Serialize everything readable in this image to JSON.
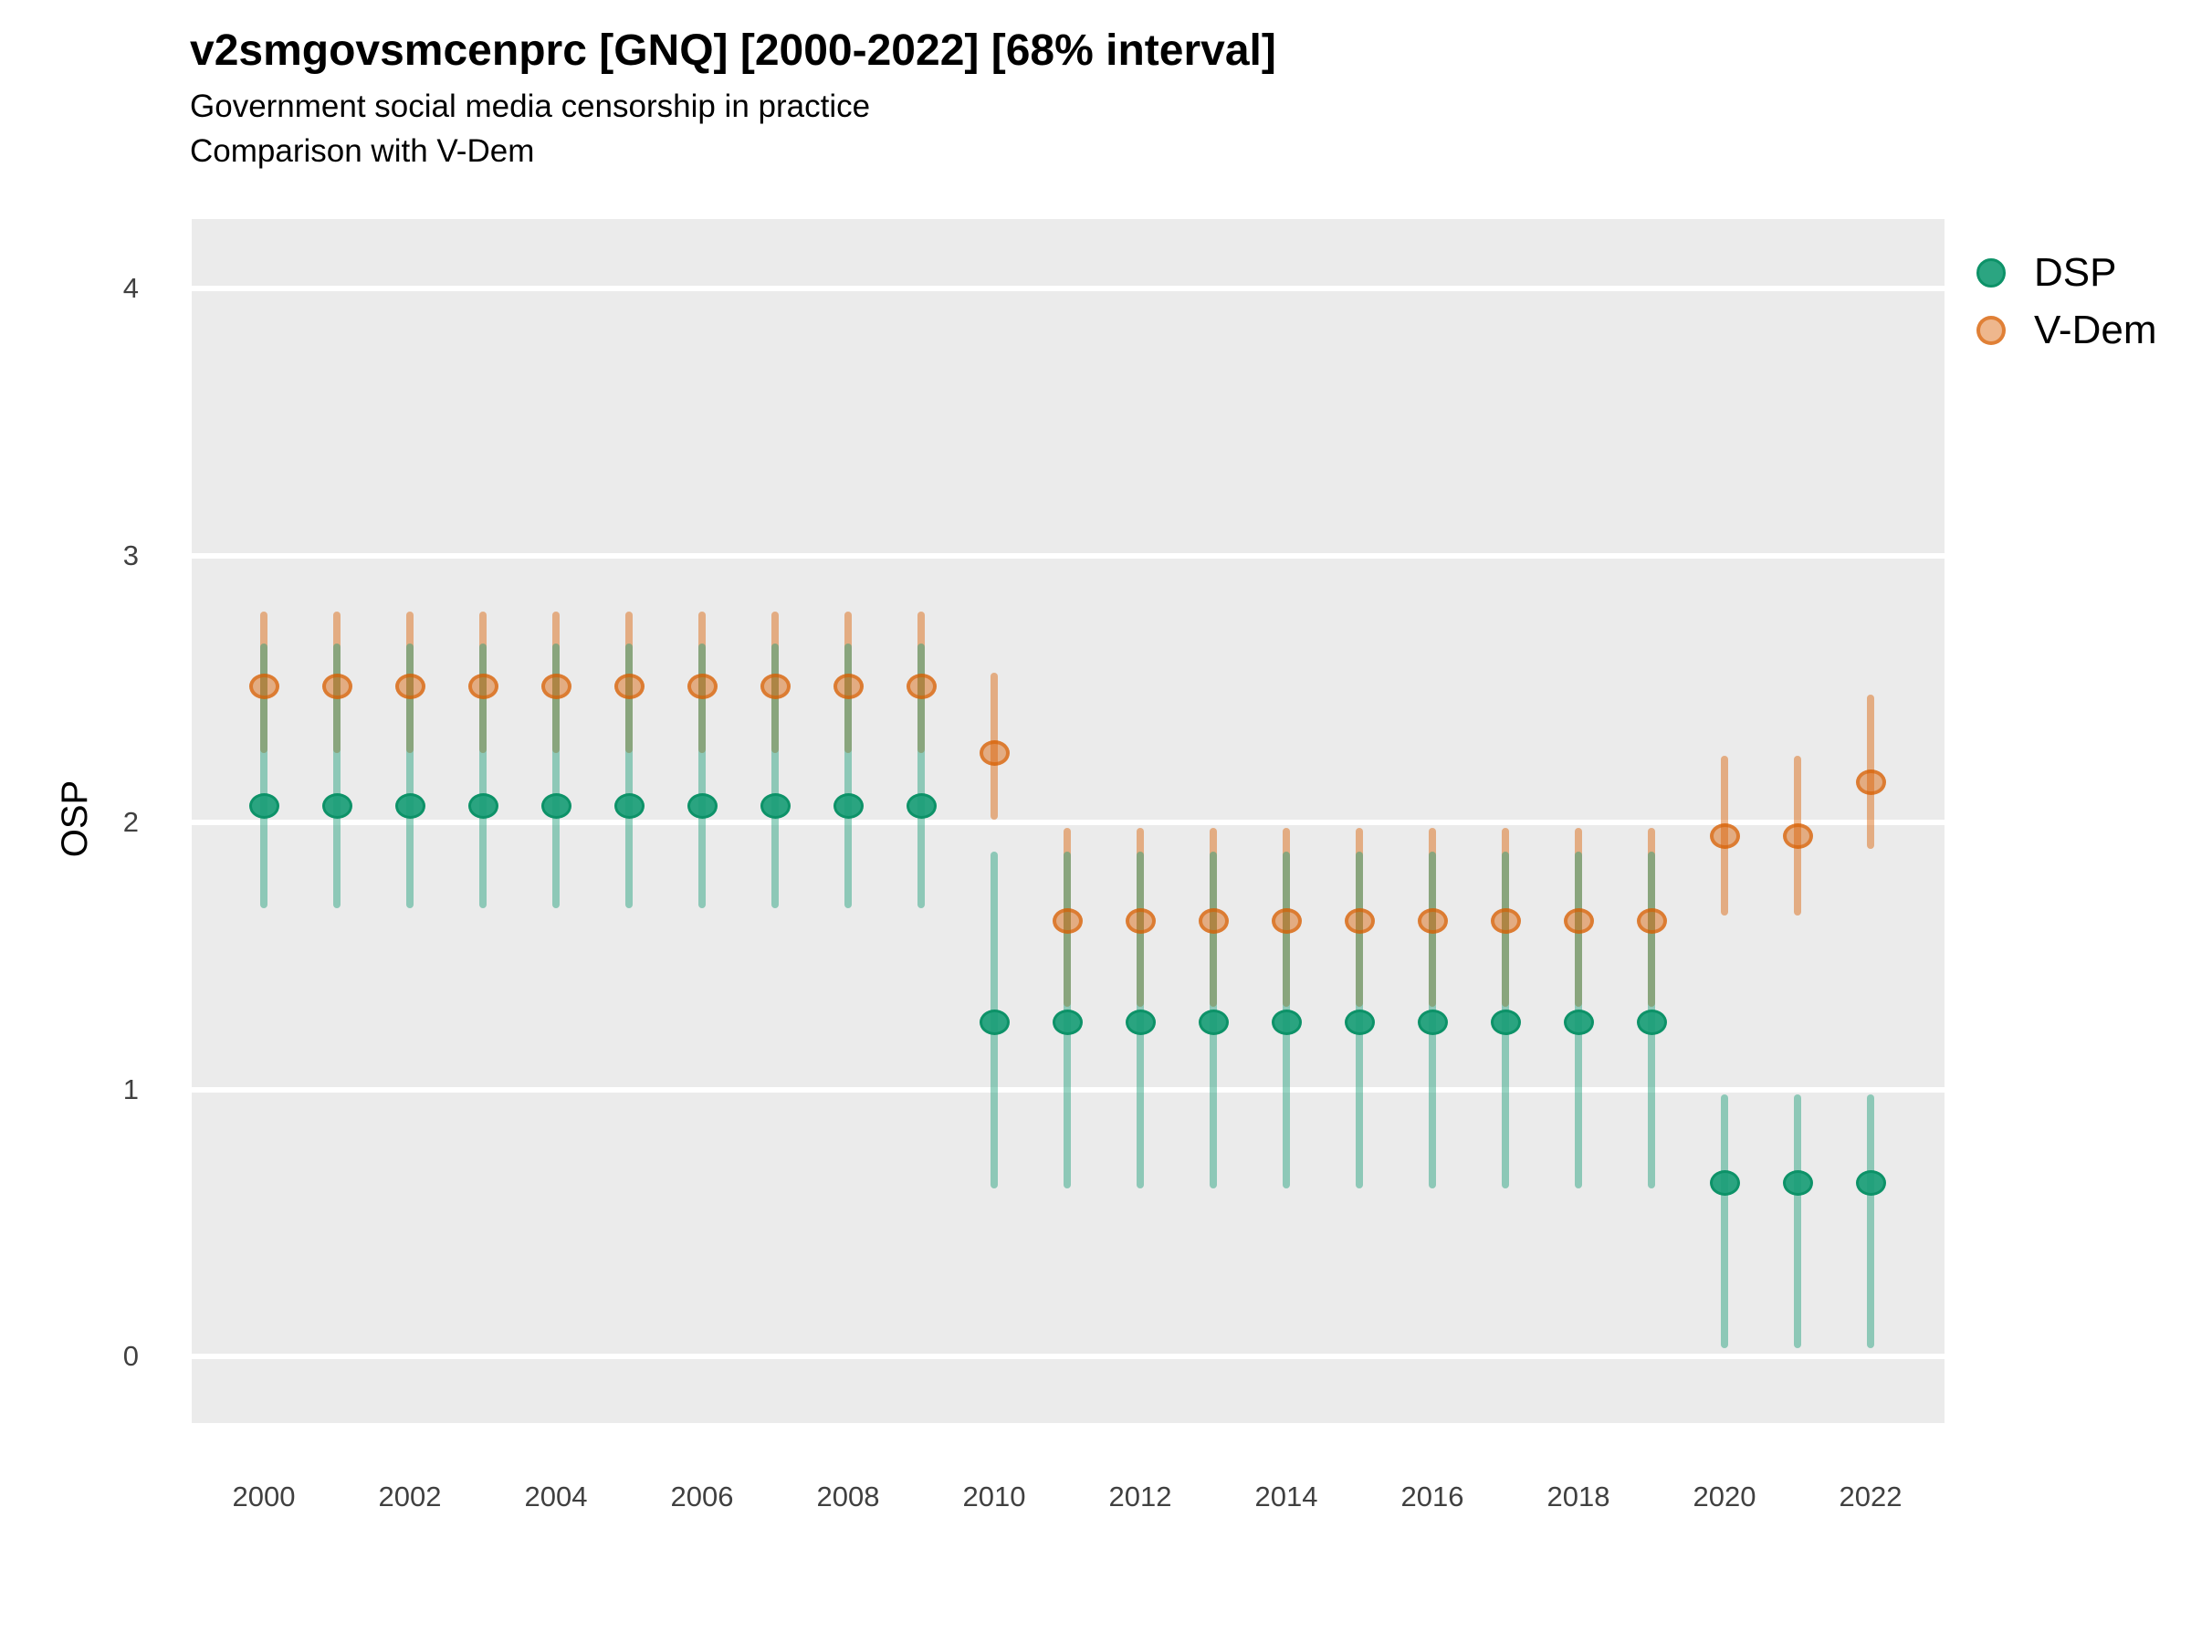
{
  "title": "v2smgovsmcenprc [GNQ] [2000-2022] [68% interval]",
  "subtitle_line1": "Government social media censorship in practice",
  "subtitle_line2": "Comparison with V-Dem",
  "y_axis_label": "OSP",
  "legend": [
    {
      "label": "DSP",
      "key": "dsp"
    },
    {
      "label": "V-Dem",
      "key": "vdem"
    }
  ],
  "colors": {
    "panel_background": "#EBEBEB",
    "gridline": "#FFFFFF",
    "tick_label": "#404040",
    "dsp_green_base": "#1B9E77",
    "vdem_orange_base": "#D95F02",
    "dsp_bar": "rgba(27,158,119,0.45)",
    "dsp_point_fill": "rgba(27,158,119,0.93)",
    "dsp_point_stroke": "#0D9268",
    "vdem_bar": "rgba(217,95,2,0.45)",
    "vdem_point_fill": "rgba(217,95,2,0.45)",
    "vdem_point_stroke": "rgba(217,95,2,0.62)"
  },
  "chart_data": {
    "type": "pointrange",
    "title": "v2smgovsmcenprc [GNQ] [2000-2022] [68% interval]",
    "subtitle": [
      "Government social media censorship in practice",
      "Comparison with V-Dem"
    ],
    "interval": "68%",
    "country_code": "GNQ",
    "xlabel": "",
    "ylabel": "OSP",
    "ylim": [
      -0.25,
      4.27
    ],
    "yticks": [
      0,
      1,
      2,
      3,
      4
    ],
    "xticks": [
      2000,
      2002,
      2004,
      2006,
      2008,
      2010,
      2012,
      2014,
      2016,
      2018,
      2020,
      2022
    ],
    "grid": "horizontal-major-only",
    "legend_position": "right",
    "years": [
      2000,
      2001,
      2002,
      2003,
      2004,
      2005,
      2006,
      2007,
      2008,
      2009,
      2010,
      2011,
      2012,
      2013,
      2014,
      2015,
      2016,
      2017,
      2018,
      2019,
      2020,
      2021,
      2022
    ],
    "series": [
      {
        "name": "DSP",
        "est": [
          2.06,
          2.06,
          2.06,
          2.06,
          2.06,
          2.06,
          2.06,
          2.06,
          2.06,
          2.06,
          1.25,
          1.25,
          1.25,
          1.25,
          1.25,
          1.25,
          1.25,
          1.25,
          1.25,
          1.25,
          0.65,
          0.65,
          0.65
        ],
        "lo": [
          1.68,
          1.68,
          1.68,
          1.68,
          1.68,
          1.68,
          1.68,
          1.68,
          1.68,
          1.68,
          0.63,
          0.63,
          0.63,
          0.63,
          0.63,
          0.63,
          0.63,
          0.63,
          0.63,
          0.63,
          0.03,
          0.03,
          0.03
        ],
        "hi": [
          2.67,
          2.67,
          2.67,
          2.67,
          2.67,
          2.67,
          2.67,
          2.67,
          2.67,
          2.67,
          1.89,
          1.89,
          1.89,
          1.89,
          1.89,
          1.89,
          1.89,
          1.89,
          1.89,
          1.89,
          0.98,
          0.98,
          0.98
        ]
      },
      {
        "name": "V-Dem",
        "est": [
          2.51,
          2.51,
          2.51,
          2.51,
          2.51,
          2.51,
          2.51,
          2.51,
          2.51,
          2.51,
          2.26,
          1.63,
          1.63,
          1.63,
          1.63,
          1.63,
          1.63,
          1.63,
          1.63,
          1.63,
          1.95,
          1.95,
          2.15
        ],
        "lo": [
          2.26,
          2.26,
          2.26,
          2.26,
          2.26,
          2.26,
          2.26,
          2.26,
          2.26,
          2.26,
          2.01,
          1.31,
          1.31,
          1.31,
          1.31,
          1.31,
          1.31,
          1.31,
          1.31,
          1.31,
          1.65,
          1.65,
          1.9
        ],
        "hi": [
          2.79,
          2.79,
          2.79,
          2.79,
          2.79,
          2.79,
          2.79,
          2.79,
          2.79,
          2.79,
          2.56,
          1.98,
          1.98,
          1.98,
          1.98,
          1.98,
          1.98,
          1.98,
          1.98,
          1.98,
          2.25,
          2.25,
          2.48
        ]
      }
    ]
  }
}
